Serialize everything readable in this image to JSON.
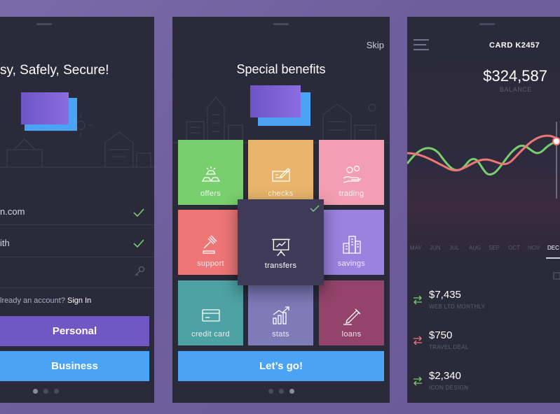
{
  "screen1": {
    "headline": "sy, Safely, Secure!",
    "email_value": "n.com",
    "name_value": "ith",
    "account_prompt": "lready an account?",
    "sign_in": "Sign In",
    "personal_button": "Personal",
    "business_button": "Business",
    "colors": {
      "personal": "#6f57c4",
      "business": "#4aa3f5"
    }
  },
  "screen2": {
    "skip": "Skip",
    "title": "Special benefits",
    "tiles": [
      {
        "label": "offers",
        "color": "#79cf6e",
        "icon": "gold-bars-icon"
      },
      {
        "label": "checks",
        "color": "#e8b56a",
        "icon": "check-writing-icon"
      },
      {
        "label": "trading",
        "color": "#f39fb3",
        "icon": "coins-hand-icon"
      },
      {
        "label": "support",
        "color": "#ef7677",
        "icon": "gavel-icon"
      },
      {
        "label": "transfers",
        "color": "#3e3a58",
        "icon": "presentation-board-icon",
        "selected": true
      },
      {
        "label": "savings",
        "color": "#9b82e0",
        "icon": "buildings-icon"
      },
      {
        "label": "credit card",
        "color": "#4ea2a3",
        "icon": "credit-card-icon"
      },
      {
        "label": "stats",
        "color": "#7d7bb8",
        "icon": "bar-chart-icon"
      },
      {
        "label": "loans",
        "color": "#94446a",
        "icon": "pen-icon"
      }
    ],
    "cta": "Let’s go!"
  },
  "screen3": {
    "card_title": "CARD K2457",
    "balance": "$324,587",
    "balance_label": "BALANCE",
    "months": [
      "MAY",
      "JUN",
      "JUL",
      "AUG",
      "SEP",
      "OCT",
      "NOV",
      "DEC"
    ],
    "active_month": "DEC",
    "transactions": [
      {
        "amount": "$7,435",
        "desc": "WEB LTD MONTHLY",
        "color": "#79cf6e"
      },
      {
        "amount": "$750",
        "desc": "TRAVEL DEAL",
        "color": "#ef7677"
      },
      {
        "amount": "$2,340",
        "desc": "ICON DESIGN",
        "color": "#79cf6e"
      }
    ]
  }
}
